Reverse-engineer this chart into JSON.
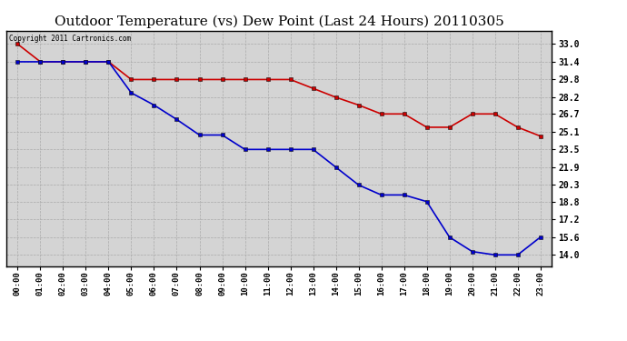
{
  "title": "Outdoor Temperature (vs) Dew Point (Last 24 Hours) 20110305",
  "copyright_text": "Copyright 2011 Cartronics.com",
  "hours": [
    "00:00",
    "01:00",
    "02:00",
    "03:00",
    "04:00",
    "05:00",
    "06:00",
    "07:00",
    "08:00",
    "09:00",
    "10:00",
    "11:00",
    "12:00",
    "13:00",
    "14:00",
    "15:00",
    "16:00",
    "17:00",
    "18:00",
    "19:00",
    "20:00",
    "21:00",
    "22:00",
    "23:00"
  ],
  "temp_red": [
    33.0,
    31.4,
    31.4,
    31.4,
    31.4,
    29.8,
    29.8,
    29.8,
    29.8,
    29.8,
    29.8,
    29.8,
    29.8,
    29.0,
    28.2,
    27.5,
    26.7,
    26.7,
    25.5,
    25.5,
    26.7,
    26.7,
    25.5,
    24.7
  ],
  "dew_blue": [
    31.4,
    31.4,
    31.4,
    31.4,
    31.4,
    28.6,
    27.5,
    26.2,
    24.8,
    24.8,
    23.5,
    23.5,
    23.5,
    23.5,
    21.9,
    20.3,
    19.4,
    19.4,
    18.8,
    15.6,
    14.3,
    14.0,
    14.0,
    15.6
  ],
  "ylim_min": 13.0,
  "ylim_max": 34.2,
  "yticks": [
    14.0,
    15.6,
    17.2,
    18.8,
    20.3,
    21.9,
    23.5,
    25.1,
    26.7,
    28.2,
    29.8,
    31.4,
    33.0
  ],
  "temp_color": "#cc0000",
  "dew_color": "#0000cc",
  "bg_color": "#ffffff",
  "plot_bg": "#d4d4d4",
  "grid_color": "#aaaaaa",
  "title_fontsize": 11,
  "marker": "s",
  "marker_size": 3,
  "line_width": 1.2
}
